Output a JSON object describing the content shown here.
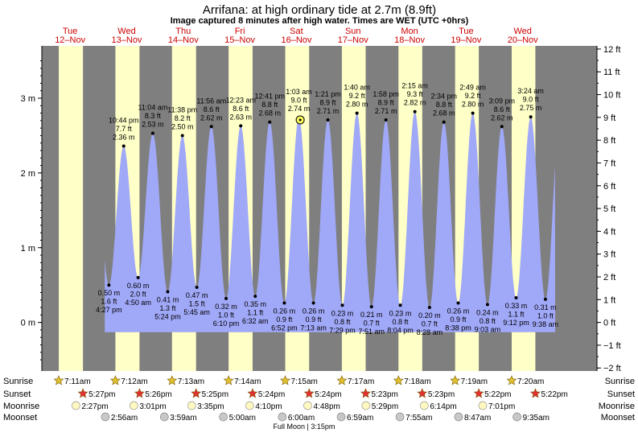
{
  "title": "Arrifana: at high  ordinary tide at 2.7m (8.9ft)",
  "subtitle": "Image captured 8 minutes after high water. Times are WET (UTC +0hrs)",
  "days": [
    {
      "dow": "Tue",
      "date": "12–Nov"
    },
    {
      "dow": "Wed",
      "date": "13–Nov"
    },
    {
      "dow": "Thu",
      "date": "14–Nov"
    },
    {
      "dow": "Fri",
      "date": "15–Nov"
    },
    {
      "dow": "Sat",
      "date": "16–Nov"
    },
    {
      "dow": "Sun",
      "date": "17–Nov"
    },
    {
      "dow": "Mon",
      "date": "18–Nov"
    },
    {
      "dow": "Tue",
      "date": "19–Nov"
    },
    {
      "dow": "Wed",
      "date": "20–Nov"
    }
  ],
  "chart_data": {
    "type": "area",
    "title": "Arrifana: at high  ordinary tide at 2.7m (8.9ft)",
    "y_axis_left": {
      "unit": "m",
      "range": [
        -0.65,
        3.7
      ],
      "ticks": [
        0,
        1,
        2,
        3
      ],
      "tick_labels": [
        "0 m",
        "1 m",
        "2 m",
        "3 m"
      ]
    },
    "y_axis_right": {
      "unit": "ft",
      "ticks": [
        -2,
        -1,
        0,
        1,
        2,
        3,
        4,
        5,
        6,
        7,
        8,
        9,
        10,
        11,
        12
      ],
      "tick_labels": [
        "−2 ft",
        "−1 ft",
        "0 ft",
        "1 ft",
        "2 ft",
        "3 ft",
        "4 ft",
        "5 ft",
        "6 ft",
        "7 ft",
        "8 ft",
        "9 ft",
        "10 ft",
        "11 ft",
        "12 ft"
      ]
    },
    "x_axis": {
      "start_day": "12-Nov",
      "end_day": "20-Nov",
      "hours_visible": 235.5
    },
    "background": {
      "day_color": "#ffffc8",
      "night_color": "#7f7f7f"
    },
    "fill_color": "#a0a8f8",
    "current_marker": {
      "x_hours": 109.6,
      "y": 2.71
    },
    "extremes": [
      {
        "type": "low",
        "x_hours": 28.45,
        "y": 0.5,
        "labels": [
          "0.50 m",
          "1.6 ft",
          "4:27 pm"
        ]
      },
      {
        "type": "high",
        "x_hours": 34.73,
        "y": 2.36,
        "labels": [
          "10:44 pm",
          "7.7 ft",
          "2.36 m"
        ]
      },
      {
        "type": "low",
        "x_hours": 40.83,
        "y": 0.6,
        "labels": [
          "0.60 m",
          "2.0 ft",
          "4:50 am"
        ]
      },
      {
        "type": "high",
        "x_hours": 47.07,
        "y": 2.53,
        "labels": [
          "11:04 am",
          "8.3 ft",
          "2.53 m"
        ]
      },
      {
        "type": "low",
        "x_hours": 53.4,
        "y": 0.41,
        "labels": [
          "0.41 m",
          "1.3 ft",
          "5:24 pm"
        ]
      },
      {
        "type": "high",
        "x_hours": 59.63,
        "y": 2.5,
        "labels": [
          "11:38 pm",
          "8.2 ft",
          "2.50 m"
        ]
      },
      {
        "type": "low",
        "x_hours": 65.75,
        "y": 0.47,
        "labels": [
          "0.47 m",
          "1.5 ft",
          "5:45 am"
        ]
      },
      {
        "type": "high",
        "x_hours": 71.93,
        "y": 2.62,
        "labels": [
          "11:56 am",
          "8.6 ft",
          "2.62 m"
        ]
      },
      {
        "type": "low",
        "x_hours": 78.17,
        "y": 0.32,
        "labels": [
          "0.32 m",
          "1.0 ft",
          "6:10 pm"
        ]
      },
      {
        "type": "high",
        "x_hours": 84.38,
        "y": 2.63,
        "labels": [
          "12:23 am",
          "8.6 ft",
          "2.63 m"
        ]
      },
      {
        "type": "low",
        "x_hours": 90.53,
        "y": 0.35,
        "labels": [
          "0.35 m",
          "1.1 ft",
          "6:32 am"
        ]
      },
      {
        "type": "high",
        "x_hours": 96.68,
        "y": 2.68,
        "labels": [
          "12:41 pm",
          "8.8 ft",
          "2.68 m"
        ]
      },
      {
        "type": "low",
        "x_hours": 102.87,
        "y": 0.26,
        "labels": [
          "0.26 m",
          "0.9 ft",
          "6:52 pm"
        ]
      },
      {
        "type": "high",
        "x_hours": 109.05,
        "y": 2.74,
        "labels": [
          "1:03 am",
          "9.0 ft",
          "2.74 m"
        ]
      },
      {
        "type": "low",
        "x_hours": 115.22,
        "y": 0.26,
        "labels": [
          "0.26 m",
          "0.9 ft",
          "7:13 am"
        ]
      },
      {
        "type": "high",
        "x_hours": 121.35,
        "y": 2.71,
        "labels": [
          "1:21 pm",
          "8.9 ft",
          "2.71 m"
        ]
      },
      {
        "type": "low",
        "x_hours": 127.48,
        "y": 0.23,
        "labels": [
          "0.23 m",
          "0.8 ft",
          "7:29 pm"
        ]
      },
      {
        "type": "high",
        "x_hours": 133.67,
        "y": 2.8,
        "labels": [
          "1:40 am",
          "9.2 ft",
          "2.80 m"
        ]
      },
      {
        "type": "low",
        "x_hours": 139.85,
        "y": 0.21,
        "labels": [
          "0.21 m",
          "0.7 ft",
          "7:51 am"
        ]
      },
      {
        "type": "high",
        "x_hours": 145.97,
        "y": 2.71,
        "labels": [
          "1:58 pm",
          "8.9 ft",
          "2.71 m"
        ]
      },
      {
        "type": "low",
        "x_hours": 152.07,
        "y": 0.23,
        "labels": [
          "0.23 m",
          "0.8 ft",
          "8:04 pm"
        ]
      },
      {
        "type": "high",
        "x_hours": 158.25,
        "y": 2.82,
        "labels": [
          "2:15 am",
          "9.3 ft",
          "2.82 m"
        ]
      },
      {
        "type": "low",
        "x_hours": 164.47,
        "y": 0.2,
        "labels": [
          "0.20 m",
          "0.7 ft",
          "8:28 am"
        ]
      },
      {
        "type": "high",
        "x_hours": 170.57,
        "y": 2.68,
        "labels": [
          "2:34 pm",
          "8.8 ft",
          "2.68 m"
        ]
      },
      {
        "type": "low",
        "x_hours": 176.63,
        "y": 0.26,
        "labels": [
          "0.26 m",
          "0.9 ft",
          "8:38 pm"
        ]
      },
      {
        "type": "high",
        "x_hours": 182.82,
        "y": 2.8,
        "labels": [
          "2:49 am",
          "9.2 ft",
          "2.80 m"
        ]
      },
      {
        "type": "low",
        "x_hours": 189.05,
        "y": 0.24,
        "labels": [
          "0.24 m",
          "0.8 ft",
          "9:03 am"
        ]
      },
      {
        "type": "high",
        "x_hours": 195.15,
        "y": 2.62,
        "labels": [
          "3:09 pm",
          "8.6 ft",
          "2.62 m"
        ]
      },
      {
        "type": "low",
        "x_hours": 201.2,
        "y": 0.33,
        "labels": [
          "0.33 m",
          "1.1 ft",
          "9:12 pm"
        ]
      },
      {
        "type": "high",
        "x_hours": 207.4,
        "y": 2.75,
        "labels": [
          "3:24 am",
          "9.0 ft",
          "2.75 m"
        ]
      },
      {
        "type": "low",
        "x_hours": 213.63,
        "y": 0.31,
        "labels": [
          "0.31 m",
          "1.0 ft",
          "9:38 am"
        ]
      }
    ],
    "daylight": [
      {
        "rise_hours": 7.18,
        "set_hours": 17.45
      },
      {
        "rise_hours": 31.2,
        "set_hours": 41.43
      },
      {
        "rise_hours": 55.22,
        "set_hours": 65.42
      },
      {
        "rise_hours": 79.23,
        "set_hours": 89.4
      },
      {
        "rise_hours": 103.25,
        "set_hours": 113.4
      },
      {
        "rise_hours": 127.28,
        "set_hours": 137.38
      },
      {
        "rise_hours": 151.3,
        "set_hours": 161.38
      },
      {
        "rise_hours": 175.32,
        "set_hours": 185.37
      },
      {
        "rise_hours": 199.33,
        "set_hours": 209.37
      }
    ]
  },
  "almanac": {
    "row_labels": {
      "sunrise": "Sunrise",
      "sunset": "Sunset",
      "moonrise": "Moonrise",
      "moonset": "Moonset"
    },
    "sunrise": [
      {
        "x_hours": 7.18,
        "text": "7:11am"
      },
      {
        "x_hours": 31.2,
        "text": "7:12am"
      },
      {
        "x_hours": 55.22,
        "text": "7:13am"
      },
      {
        "x_hours": 79.23,
        "text": "7:14am"
      },
      {
        "x_hours": 103.25,
        "text": "7:15am"
      },
      {
        "x_hours": 127.28,
        "text": "7:17am"
      },
      {
        "x_hours": 151.3,
        "text": "7:18am"
      },
      {
        "x_hours": 175.32,
        "text": "7:19am"
      },
      {
        "x_hours": 199.33,
        "text": "7:20am"
      }
    ],
    "sunset": [
      {
        "x_hours": 17.45,
        "text": "5:27pm"
      },
      {
        "x_hours": 41.43,
        "text": "5:26pm"
      },
      {
        "x_hours": 65.42,
        "text": "5:25pm"
      },
      {
        "x_hours": 89.4,
        "text": "5:24pm"
      },
      {
        "x_hours": 113.4,
        "text": "5:24pm"
      },
      {
        "x_hours": 137.38,
        "text": "5:23pm"
      },
      {
        "x_hours": 161.38,
        "text": "5:23pm"
      },
      {
        "x_hours": 185.37,
        "text": "5:22pm"
      },
      {
        "x_hours": 209.37,
        "text": "5:22pm"
      }
    ],
    "moonrise": [
      {
        "x_hours": 14.45,
        "text": "2:27pm"
      },
      {
        "x_hours": 39.02,
        "text": "3:01pm"
      },
      {
        "x_hours": 63.58,
        "text": "3:35pm"
      },
      {
        "x_hours": 88.17,
        "text": "4:10pm"
      },
      {
        "x_hours": 112.8,
        "text": "4:48pm"
      },
      {
        "x_hours": 137.48,
        "text": "5:29pm"
      },
      {
        "x_hours": 162.23,
        "text": "6:14pm"
      },
      {
        "x_hours": 187.02,
        "text": "7:01pm"
      }
    ],
    "moonset": [
      {
        "x_hours": 26.93,
        "text": "2:56am"
      },
      {
        "x_hours": 51.98,
        "text": "3:59am"
      },
      {
        "x_hours": 77.0,
        "text": "5:00am"
      },
      {
        "x_hours": 102.0,
        "text": "6:00am"
      },
      {
        "x_hours": 126.98,
        "text": "6:59am"
      },
      {
        "x_hours": 151.92,
        "text": "7:55am"
      },
      {
        "x_hours": 176.78,
        "text": "8:47am"
      },
      {
        "x_hours": 201.58,
        "text": "9:35am"
      }
    ],
    "moon_phase": {
      "x_hours": 111.25,
      "text": "Full Moon | 3:15pm"
    }
  },
  "colors": {
    "tide": "#a0a8f8",
    "day": "#ffffc8",
    "night": "#7f7f7f",
    "day_label": "#cc0000",
    "sun": "#e0c030",
    "sunset": "#e03030",
    "moonrise": "#fff8c0",
    "moonset": "#c8c8c8"
  }
}
